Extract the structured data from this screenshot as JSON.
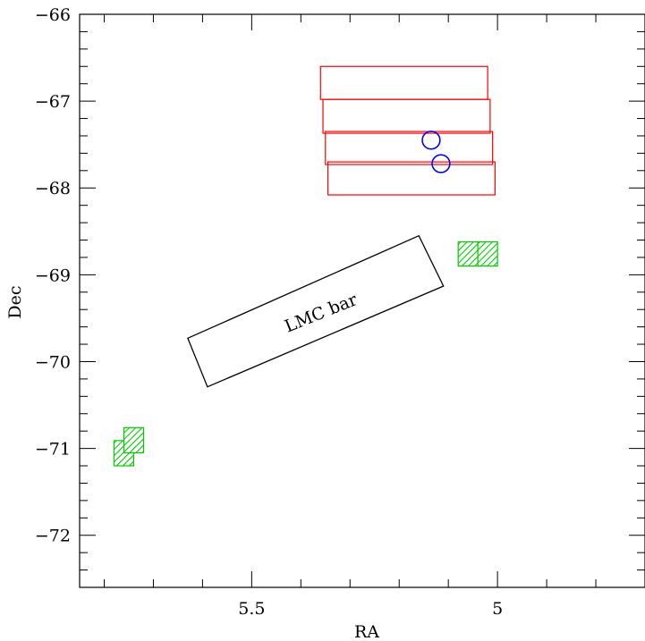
{
  "chart_data": {
    "type": "scatter",
    "xlabel": "RA",
    "ylabel": "Dec",
    "xlim": [
      5.85,
      4.7
    ],
    "ylim": [
      -72.6,
      -66.0
    ],
    "x_ticks": [
      {
        "value": 5.5,
        "label": "5.5"
      },
      {
        "value": 5.0,
        "label": "5"
      }
    ],
    "x_minor_step": 0.1,
    "y_ticks": [
      {
        "value": -66,
        "label": "−66"
      },
      {
        "value": -67,
        "label": "−67"
      },
      {
        "value": -68,
        "label": "−68"
      },
      {
        "value": -69,
        "label": "−69"
      },
      {
        "value": -70,
        "label": "−70"
      },
      {
        "value": -71,
        "label": "−71"
      },
      {
        "value": -72,
        "label": "−72"
      }
    ],
    "y_minor_step": 0.2,
    "colors": {
      "fields": "#ff0000",
      "circles": "#0000ff",
      "hatched": "#00cc00",
      "bar": "#000000"
    },
    "red_fields": [
      {
        "ra_min": 5.02,
        "ra_max": 5.36,
        "dec_min": -66.98,
        "dec_max": -66.6
      },
      {
        "ra_min": 5.015,
        "ra_max": 5.355,
        "dec_min": -67.37,
        "dec_max": -66.98
      },
      {
        "ra_min": 5.01,
        "ra_max": 5.35,
        "dec_min": -67.73,
        "dec_max": -67.35
      },
      {
        "ra_min": 5.005,
        "ra_max": 5.345,
        "dec_min": -68.08,
        "dec_max": -67.7
      }
    ],
    "blue_circles": [
      {
        "ra": 5.135,
        "dec": -67.45,
        "r": 0.018
      },
      {
        "ra": 5.115,
        "dec": -67.72,
        "r": 0.018
      }
    ],
    "green_fields": [
      {
        "ra_min": 5.04,
        "ra_max": 5.08,
        "dec_min": -68.9,
        "dec_max": -68.62
      },
      {
        "ra_min": 5.0,
        "ra_max": 5.04,
        "dec_min": -68.9,
        "dec_max": -68.62
      },
      {
        "ra_min": 5.74,
        "ra_max": 5.78,
        "dec_min": -71.2,
        "dec_max": -70.91
      },
      {
        "ra_min": 5.72,
        "ra_max": 5.76,
        "dec_min": -71.05,
        "dec_max": -70.76
      }
    ],
    "lmc_bar": {
      "label": "LMC bar",
      "corners": [
        {
          "ra": 5.63,
          "dec": -69.73
        },
        {
          "ra": 5.16,
          "dec": -68.55
        },
        {
          "ra": 5.11,
          "dec": -69.13
        },
        {
          "ra": 5.59,
          "dec": -70.29
        }
      ],
      "label_pos": {
        "ra": 5.355,
        "dec": -69.5
      },
      "label_angle_deg": -22
    }
  }
}
